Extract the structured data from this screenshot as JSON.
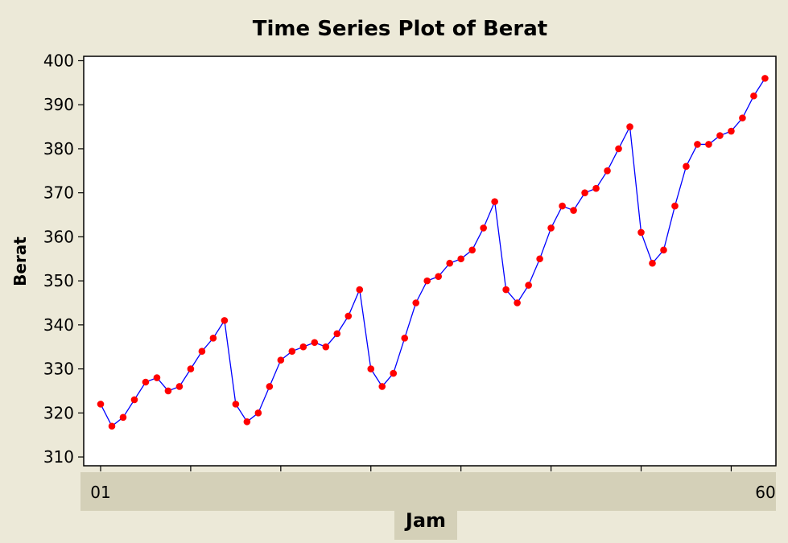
{
  "chart_data": {
    "type": "line",
    "title": "Time Series Plot of Berat",
    "xlabel": "Jam",
    "ylabel": "Berat",
    "x_tick_labels": {
      "first": "01",
      "last": "60"
    },
    "ylim": [
      308,
      401
    ],
    "yticks": [
      310,
      320,
      330,
      340,
      350,
      360,
      370,
      380,
      390,
      400
    ],
    "grid": false,
    "colors": {
      "line": "#0000ff",
      "marker": "#ff0000",
      "plot_background": "#ffffff",
      "figure_background": "#ece9d8",
      "x_label_band": "#d4d0b8"
    },
    "series": [
      {
        "x": [
          1,
          2,
          3,
          4,
          5,
          6,
          7,
          8,
          9,
          10,
          11,
          12,
          13,
          14,
          15,
          16,
          17,
          18,
          19,
          20,
          21,
          22,
          23,
          24,
          25,
          26,
          27,
          28,
          29,
          30,
          31,
          32,
          33,
          34,
          35,
          36,
          37,
          38,
          39,
          40,
          41,
          42,
          43,
          44,
          45,
          46,
          47,
          48,
          49,
          50,
          51,
          52,
          53,
          54,
          55,
          56,
          57,
          58,
          59,
          60
        ],
        "values": [
          322,
          317,
          319,
          323,
          327,
          328,
          325,
          326,
          330,
          334,
          337,
          341,
          322,
          318,
          320,
          326,
          332,
          334,
          335,
          336,
          335,
          338,
          342,
          348,
          330,
          326,
          329,
          337,
          345,
          350,
          351,
          354,
          355,
          357,
          362,
          368,
          348,
          345,
          349,
          355,
          362,
          367,
          366,
          370,
          371,
          375,
          380,
          385,
          361,
          354,
          357,
          367,
          376,
          381,
          381,
          383,
          384,
          387,
          392,
          396
        ]
      }
    ]
  }
}
